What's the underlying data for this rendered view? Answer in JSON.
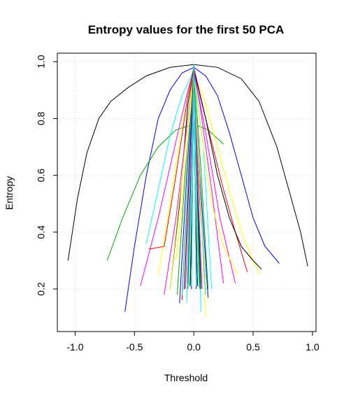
{
  "chart_data": {
    "type": "line",
    "title": "Entropy values for the first 50 PCA",
    "xlabel": "Threshold",
    "ylabel": "Entropy",
    "xlim": [
      -1.15,
      1.03
    ],
    "ylim": [
      0.05,
      1.03
    ],
    "xticks": [
      -1.0,
      -0.5,
      0.0,
      0.5,
      1.0
    ],
    "xtick_labels": [
      "-1.0",
      "-0.5",
      "0.0",
      "0.5",
      "1.0"
    ],
    "yticks": [
      0.2,
      0.4,
      0.6,
      0.8,
      1.0
    ],
    "ytick_labels": [
      "0.2",
      "0.4",
      "0.6",
      "0.8",
      "1.0"
    ],
    "grid": true,
    "series": [
      {
        "color": "#000000",
        "x": [
          -1.06,
          -0.98,
          -0.9,
          -0.8,
          -0.7,
          -0.55,
          -0.4,
          -0.2,
          0.0,
          0.2,
          0.4,
          0.55,
          0.7,
          0.8,
          0.9,
          0.96
        ],
        "y": [
          0.3,
          0.52,
          0.68,
          0.8,
          0.86,
          0.91,
          0.95,
          0.98,
          0.99,
          0.98,
          0.94,
          0.86,
          0.7,
          0.55,
          0.4,
          0.28
        ]
      },
      {
        "color": "#0000ff",
        "x": [
          -0.58,
          -0.5,
          -0.4,
          -0.3,
          -0.2,
          -0.1,
          0.0,
          0.1,
          0.2,
          0.3,
          0.4,
          0.5,
          0.6,
          0.72
        ],
        "y": [
          0.12,
          0.35,
          0.6,
          0.8,
          0.9,
          0.96,
          0.98,
          0.95,
          0.88,
          0.75,
          0.6,
          0.45,
          0.35,
          0.29
        ]
      },
      {
        "color": "#00aa00",
        "x": [
          -0.73,
          -0.6,
          -0.45,
          -0.3,
          -0.15,
          0.0,
          0.12,
          0.25
        ],
        "y": [
          0.3,
          0.45,
          0.6,
          0.7,
          0.76,
          0.78,
          0.76,
          0.71
        ]
      },
      {
        "color": "#00ffff",
        "x": [
          -0.4,
          -0.3,
          -0.2,
          -0.1,
          0.0,
          0.08,
          0.15
        ],
        "y": [
          0.36,
          0.55,
          0.74,
          0.88,
          0.97,
          0.7,
          0.2
        ]
      },
      {
        "color": "#ff00ff",
        "x": [
          -0.45,
          -0.3,
          -0.15,
          -0.05,
          0.0,
          0.1,
          0.22,
          0.35
        ],
        "y": [
          0.21,
          0.45,
          0.72,
          0.9,
          0.97,
          0.75,
          0.45,
          0.22
        ]
      },
      {
        "color": "#ffff00",
        "x": [
          -0.3,
          -0.2,
          -0.1,
          0.0,
          0.1,
          0.25,
          0.4,
          0.55
        ],
        "y": [
          0.25,
          0.5,
          0.78,
          0.96,
          0.85,
          0.62,
          0.4,
          0.25
        ]
      },
      {
        "color": "#ff0000",
        "x": [
          -0.38,
          -0.25,
          -0.15,
          -0.05,
          0.0,
          0.1,
          0.25,
          0.35,
          0.45
        ],
        "y": [
          0.34,
          0.35,
          0.6,
          0.88,
          0.98,
          0.8,
          0.55,
          0.4,
          0.26
        ]
      },
      {
        "color": "#000000",
        "x": [
          -0.2,
          -0.12,
          -0.05,
          0.0,
          0.1,
          0.2,
          0.3,
          0.4,
          0.5,
          0.57
        ],
        "y": [
          0.2,
          0.5,
          0.85,
          0.97,
          0.8,
          0.6,
          0.45,
          0.35,
          0.3,
          0.27
        ]
      },
      {
        "color": "#ff00ff",
        "x": [
          -0.25,
          -0.15,
          -0.05,
          0.0,
          0.05,
          0.15,
          0.25
        ],
        "y": [
          0.18,
          0.45,
          0.8,
          0.97,
          0.85,
          0.55,
          0.22
        ]
      },
      {
        "color": "#0000ff",
        "x": [
          -0.12,
          -0.06,
          0.0,
          0.05,
          0.12
        ],
        "y": [
          0.15,
          0.6,
          0.97,
          0.6,
          0.17
        ]
      },
      {
        "color": "#00aa00",
        "x": [
          -0.14,
          -0.07,
          0.0,
          0.06,
          0.12
        ],
        "y": [
          0.18,
          0.62,
          0.97,
          0.62,
          0.2
        ]
      },
      {
        "color": "#ff0000",
        "x": [
          -0.1,
          -0.05,
          0.0,
          0.04,
          0.1
        ],
        "y": [
          0.16,
          0.58,
          0.98,
          0.58,
          0.18
        ]
      },
      {
        "color": "#00ffff",
        "x": [
          -0.1,
          -0.05,
          0.0,
          0.05,
          0.1
        ],
        "y": [
          0.18,
          0.6,
          0.98,
          0.58,
          0.18
        ]
      },
      {
        "color": "#00ffff",
        "x": [
          -0.06,
          -0.03,
          0.0,
          0.03,
          0.06
        ],
        "y": [
          0.15,
          0.55,
          0.99,
          0.55,
          0.12
        ]
      },
      {
        "color": "#ffff00",
        "x": [
          -0.2,
          -0.1,
          0.0,
          0.05,
          0.1
        ],
        "y": [
          0.2,
          0.6,
          0.97,
          0.55,
          0.1
        ]
      },
      {
        "color": "#ffff00",
        "x": [
          -0.15,
          -0.08,
          0.0,
          0.08,
          0.15,
          0.25,
          0.37
        ],
        "y": [
          0.3,
          0.6,
          0.95,
          0.7,
          0.5,
          0.35,
          0.25
        ]
      },
      {
        "color": "#000000",
        "x": [
          -0.08,
          -0.04,
          0.0,
          0.03,
          0.06
        ],
        "y": [
          0.2,
          0.6,
          0.99,
          0.6,
          0.2
        ]
      },
      {
        "color": "#000000",
        "x": [
          -0.05,
          -0.02,
          0.0,
          0.02,
          0.05
        ],
        "y": [
          0.22,
          0.65,
          0.99,
          0.65,
          0.22
        ]
      },
      {
        "color": "#ff00ff",
        "x": [
          -0.07,
          -0.03,
          0.0,
          0.03,
          0.07
        ],
        "y": [
          0.2,
          0.6,
          0.98,
          0.6,
          0.2
        ]
      },
      {
        "color": "#00aa00",
        "x": [
          -0.05,
          -0.02,
          0.0,
          0.02,
          0.05
        ],
        "y": [
          0.2,
          0.62,
          0.98,
          0.62,
          0.2
        ]
      },
      {
        "color": "#0000ff",
        "x": [
          -0.02,
          -0.01,
          0.0,
          0.01,
          0.02
        ],
        "y": [
          0.2,
          0.6,
          0.99,
          0.6,
          0.2
        ]
      },
      {
        "color": "#ff0000",
        "x": [
          -0.03,
          -0.01,
          0.0,
          0.01,
          0.03
        ],
        "y": [
          0.22,
          0.62,
          0.99,
          0.62,
          0.22
        ]
      },
      {
        "color": "#00ffff",
        "x": [
          -0.04,
          -0.02,
          0.0,
          0.02,
          0.04
        ],
        "y": [
          0.21,
          0.6,
          0.99,
          0.6,
          0.21
        ]
      },
      {
        "color": "#ff00ff",
        "x": [
          -0.03,
          -0.01,
          0.0,
          0.01,
          0.03
        ],
        "y": [
          0.21,
          0.6,
          0.99,
          0.6,
          0.21
        ]
      },
      {
        "color": "#ffff00",
        "x": [
          -0.02,
          -0.01,
          0.0,
          0.01,
          0.02
        ],
        "y": [
          0.22,
          0.61,
          0.99,
          0.61,
          0.22
        ]
      },
      {
        "color": "#000000",
        "x": [
          -0.03,
          -0.01,
          0.0,
          0.01,
          0.03
        ],
        "y": [
          0.21,
          0.6,
          0.99,
          0.6,
          0.21
        ]
      },
      {
        "color": "#ff0000",
        "x": [
          -0.02,
          -0.01,
          0.0,
          0.01,
          0.02
        ],
        "y": [
          0.23,
          0.62,
          0.99,
          0.62,
          0.23
        ]
      },
      {
        "color": "#0000ff",
        "x": [
          -0.02,
          -0.01,
          0.0,
          0.01,
          0.02
        ],
        "y": [
          0.22,
          0.62,
          0.99,
          0.62,
          0.22
        ]
      },
      {
        "color": "#00aa00",
        "x": [
          -0.02,
          -0.01,
          0.0,
          0.01,
          0.02
        ],
        "y": [
          0.22,
          0.61,
          0.99,
          0.61,
          0.22
        ]
      },
      {
        "color": "#00ffff",
        "x": [
          -0.02,
          -0.01,
          0.0,
          0.01,
          0.02
        ],
        "y": [
          0.21,
          0.6,
          0.99,
          0.6,
          0.21
        ]
      }
    ]
  }
}
